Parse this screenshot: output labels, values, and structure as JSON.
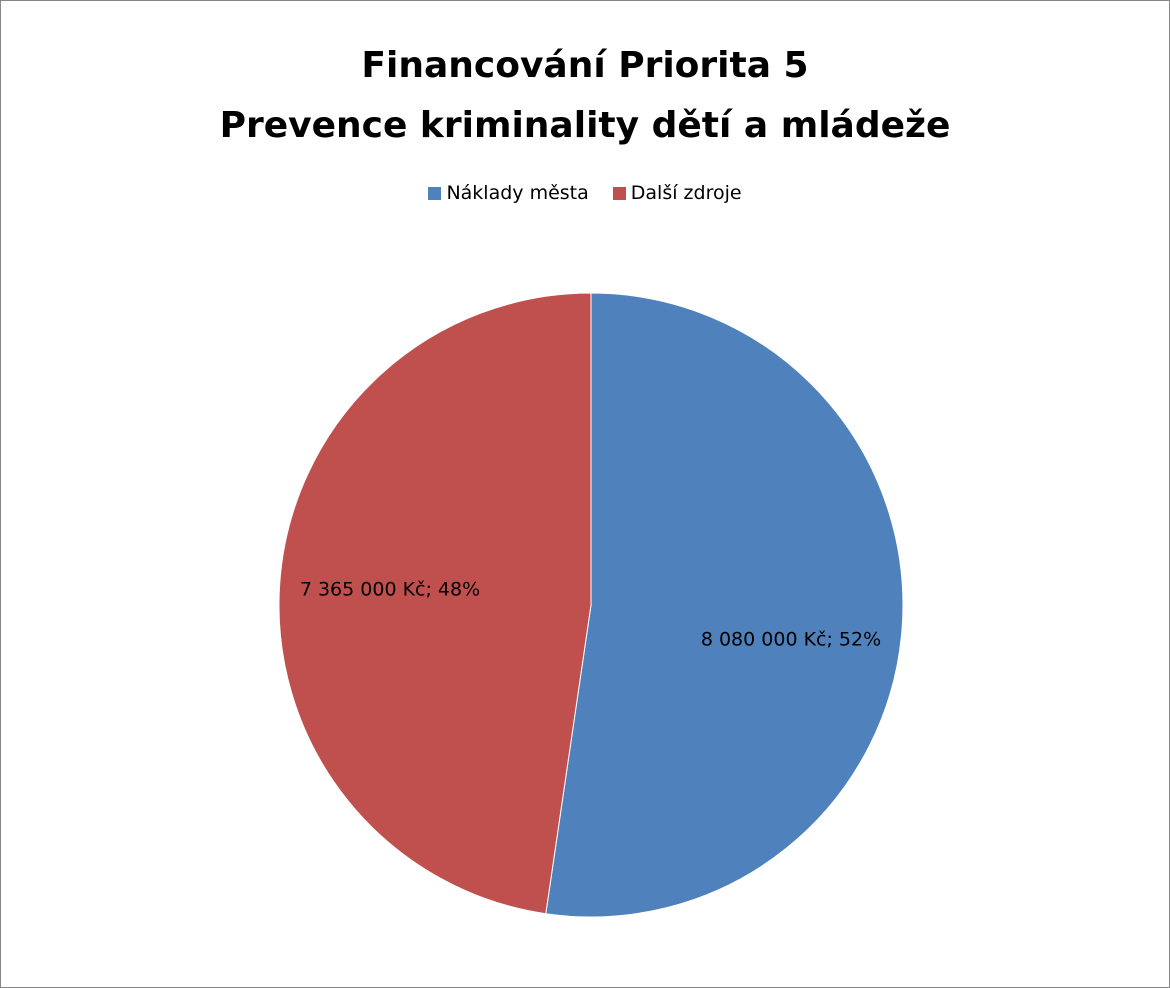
{
  "chart_data": {
    "type": "pie",
    "title": [
      "Financování Priorita 5",
      "Prevence kriminality dětí a mládeže"
    ],
    "legend_position": "top",
    "categories": [
      "Náklady města",
      "Další zdroje"
    ],
    "values": [
      8080000,
      7365000
    ],
    "percents": [
      52,
      48
    ],
    "labels": [
      "8 080 000 Kč; 52%",
      "7 365 000 Kč; 48%"
    ],
    "colors": [
      "#4F81BD",
      "#C0504D"
    ]
  }
}
